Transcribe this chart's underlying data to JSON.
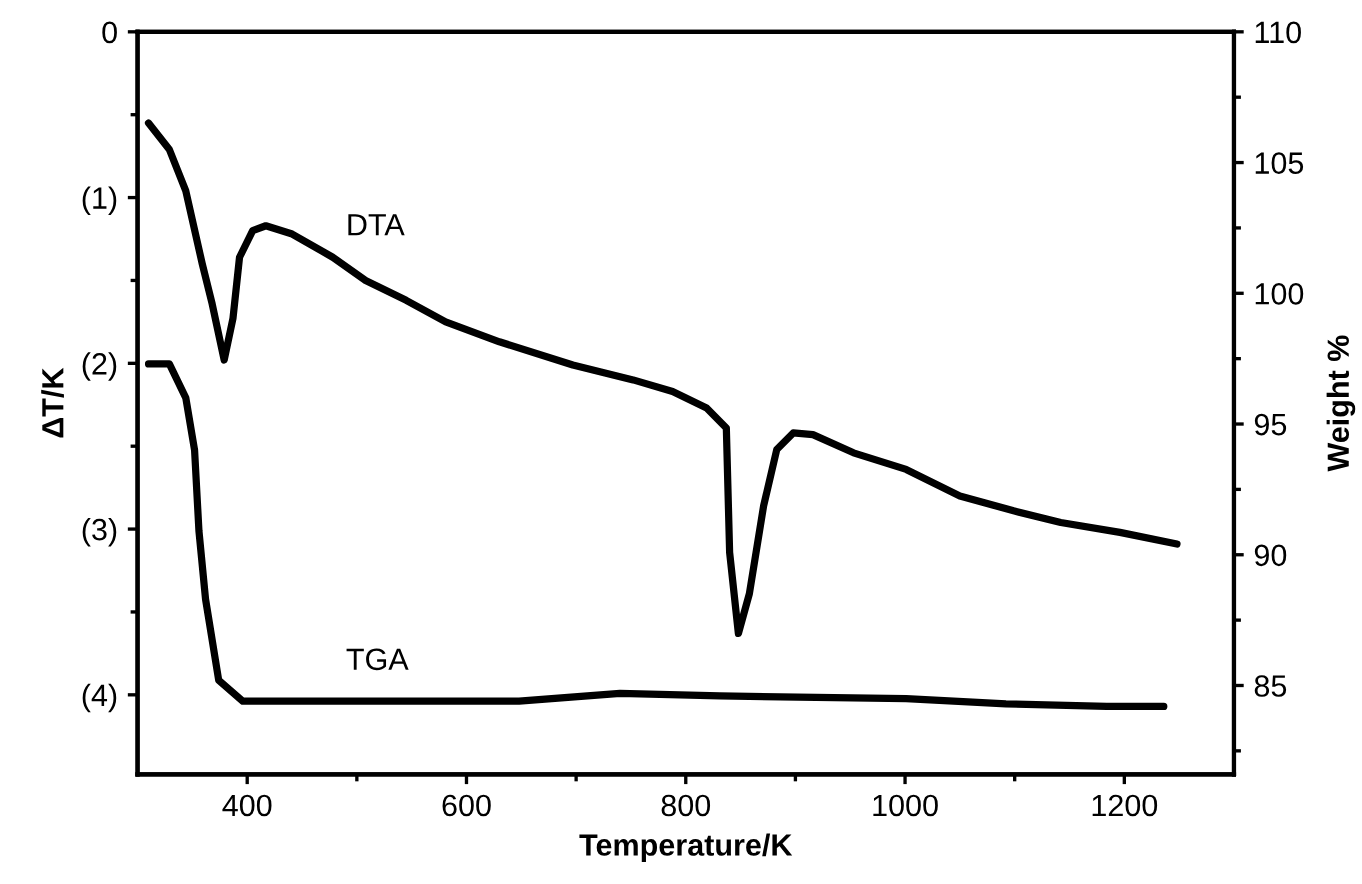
{
  "chart_data": {
    "type": "line",
    "xlabel": "Temperature/K",
    "ylabel": "ΔT/K",
    "y2label": "Weight %",
    "xlim": [
      300,
      1300
    ],
    "xticks": [
      400,
      {
        "value": 500,
        "label": null
      },
      600,
      {
        "value": 700,
        "label": null
      },
      800,
      {
        "value": 900,
        "label": null
      },
      1000,
      {
        "value": 1100,
        "label": null
      },
      1200
    ],
    "ylim": [
      4.48,
      0
    ],
    "yticks": [
      0,
      {
        "value": 0.5,
        "label": null
      },
      {
        "value": 1,
        "label": "(1)"
      },
      {
        "value": 1.5,
        "label": null
      },
      {
        "value": 2,
        "label": "(2)"
      },
      {
        "value": 2.5,
        "label": null
      },
      {
        "value": 3,
        "label": "(3)"
      },
      {
        "value": 3.5,
        "label": null
      },
      {
        "value": 4,
        "label": "(4)"
      }
    ],
    "y2lim": [
      81.6,
      110
    ],
    "y2ticks": [
      {
        "value": 82.5,
        "label": null
      },
      85,
      {
        "value": 87.5,
        "label": null
      },
      90,
      {
        "value": 92.5,
        "label": null
      },
      95,
      {
        "value": 97.5,
        "label": null
      },
      100,
      {
        "value": 102.5,
        "label": null
      },
      105,
      {
        "value": 107.5,
        "label": null
      },
      110
    ],
    "grid": false,
    "legend": false,
    "marker": "none",
    "line_style": "solid",
    "series": [
      {
        "name": "DTA",
        "color": "#000000",
        "axis": "y",
        "x": [
          310,
          329,
          344,
          359,
          368,
          379,
          387,
          393,
          405,
          417,
          441,
          478,
          508,
          545,
          581,
          630,
          697,
          752,
          788,
          819,
          837,
          840,
          848,
          858,
          871,
          883,
          898,
          916,
          953,
          1001,
          1050,
          1099,
          1142,
          1196,
          1248
        ],
        "values": [
          0.55,
          0.71,
          0.96,
          1.4,
          1.64,
          1.98,
          1.73,
          1.36,
          1.2,
          1.17,
          1.22,
          1.36,
          1.5,
          1.62,
          1.75,
          1.87,
          2.01,
          2.1,
          2.17,
          2.27,
          2.39,
          3.14,
          3.63,
          3.39,
          2.86,
          2.52,
          2.42,
          2.43,
          2.54,
          2.64,
          2.8,
          2.89,
          2.96,
          3.02,
          3.09
        ]
      },
      {
        "name": "TGA",
        "color": "#000000",
        "axis": "y2",
        "x": [
          310,
          329,
          344,
          352,
          356,
          362,
          374,
          396,
          648,
          740,
          831,
          1001,
          1092,
          1184,
          1236
        ],
        "values": [
          97.3,
          97.3,
          96.0,
          94.0,
          90.9,
          88.3,
          85.2,
          84.4,
          84.4,
          84.7,
          84.6,
          84.5,
          84.3,
          84.2,
          84.2
        ]
      }
    ]
  }
}
